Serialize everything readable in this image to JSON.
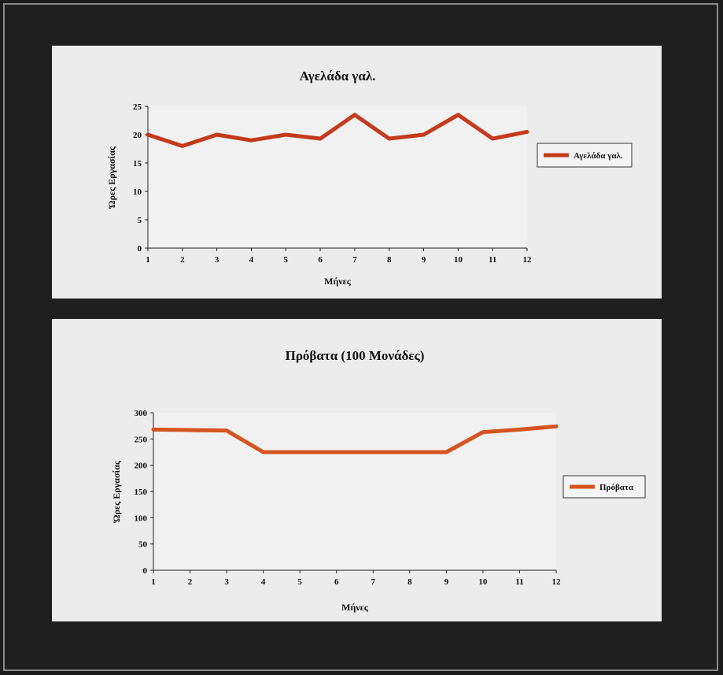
{
  "chart_data": [
    {
      "type": "line",
      "title": "Αγελάδα γαλ.",
      "xlabel": "Μήνες",
      "ylabel": "Ώρες Εργασίας",
      "x": [
        1,
        2,
        3,
        4,
        5,
        6,
        7,
        8,
        9,
        10,
        11,
        12
      ],
      "ylim": [
        0,
        25
      ],
      "yticks": [
        0,
        5,
        10,
        15,
        20,
        25
      ],
      "series": [
        {
          "name": "Αγελάδα γαλ.",
          "values": [
            20,
            18,
            20,
            19,
            20,
            19.3,
            23.5,
            19.3,
            20,
            23.5,
            19.3,
            20.5
          ],
          "color": "#c43a1c"
        }
      ],
      "legend": "right",
      "grid": false
    },
    {
      "type": "line",
      "title": "Πρόβατα (100 Μονάδες)",
      "xlabel": "Μήνες",
      "ylabel": "Ώρες Εργασίας",
      "x": [
        1,
        2,
        3,
        4,
        5,
        6,
        7,
        8,
        9,
        10,
        11,
        12
      ],
      "ylim": [
        0,
        300
      ],
      "yticks": [
        0,
        50,
        100,
        150,
        200,
        250,
        300
      ],
      "series": [
        {
          "name": "Πρόβατα",
          "values": [
            268,
            267,
            266,
            225,
            225,
            225,
            225,
            225,
            225,
            263,
            268,
            274
          ],
          "color": "#d45420"
        }
      ],
      "legend": "right",
      "grid": false
    }
  ]
}
